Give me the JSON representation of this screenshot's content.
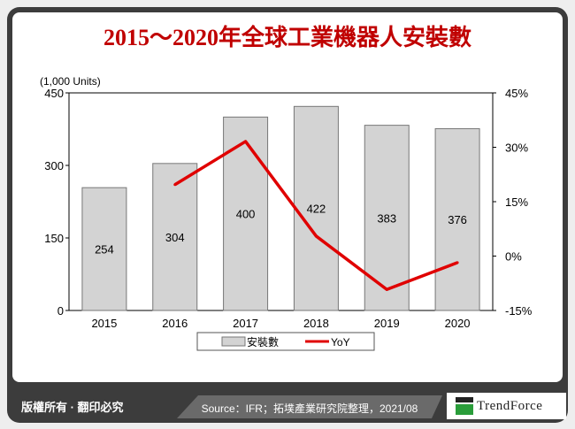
{
  "title": "2015～2020年全球工業機器人安裝數",
  "footer": {
    "copyright": "版權所有 · 翻印必究",
    "source": "Source：IFR；拓墣產業研究院整理，2021/08",
    "logo": "TrendForce"
  },
  "chart_data": {
    "type": "bar+line",
    "title": "2015～2020年全球工業機器人安裝數",
    "ylabel": "(1,000 Units)",
    "categories": [
      "2015",
      "2016",
      "2017",
      "2018",
      "2019",
      "2020"
    ],
    "series": [
      {
        "name": "安裝數",
        "type": "bar",
        "axis": "left",
        "values": [
          254,
          304,
          400,
          422,
          383,
          376
        ],
        "color": "#d3d3d3"
      },
      {
        "name": "YoY",
        "type": "line",
        "axis": "right",
        "values": [
          null,
          19.7,
          31.6,
          5.5,
          -9.2,
          -1.8
        ],
        "color": "#e00000"
      }
    ],
    "ylim": [
      0,
      450
    ],
    "yticks": [
      "0",
      "150",
      "300",
      "450"
    ],
    "y2lim": [
      -15,
      45
    ],
    "y2ticks": [
      "-15%",
      "0%",
      "15%",
      "30%",
      "45%"
    ],
    "legend": "bottom",
    "grid": false
  }
}
